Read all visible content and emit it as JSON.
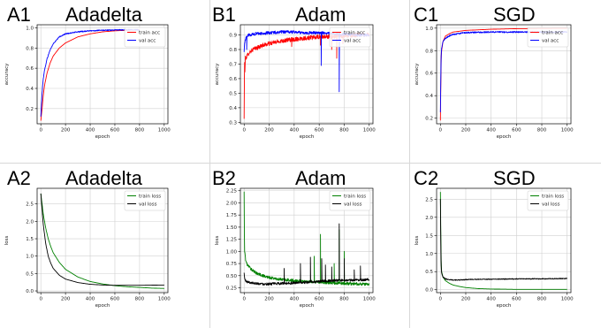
{
  "chart_data": [
    {
      "id": "A1",
      "type": "line",
      "panel_label": "A1",
      "title": "Adadelta",
      "xlabel": "epoch",
      "ylabel": "accuracy",
      "xlim": [
        -30,
        1030
      ],
      "ylim": [
        0.05,
        1.03
      ],
      "xticks": [
        "0",
        "200",
        "400",
        "600",
        "800",
        "1000"
      ],
      "yticks": [
        "0.2",
        "0.4",
        "0.6",
        "0.8",
        "1.0"
      ],
      "xtick_values": [
        0,
        200,
        400,
        600,
        800,
        1000
      ],
      "ytick_values": [
        0.2,
        0.4,
        0.6,
        0.8,
        1.0
      ],
      "grid": true,
      "legend_position": "top-right",
      "x": [
        0,
        10,
        20,
        30,
        50,
        75,
        100,
        150,
        200,
        300,
        400,
        500,
        600,
        700,
        800
      ],
      "series": [
        {
          "name": "train acc",
          "color": "#ff0000",
          "noise": 0.0,
          "values": [
            0.08,
            0.2,
            0.33,
            0.43,
            0.55,
            0.65,
            0.72,
            0.8,
            0.85,
            0.91,
            0.94,
            0.96,
            0.97,
            0.975,
            0.98
          ]
        },
        {
          "name": "val acc",
          "color": "#0000ff",
          "noise": 0.005,
          "values": [
            0.12,
            0.35,
            0.5,
            0.58,
            0.69,
            0.78,
            0.84,
            0.91,
            0.94,
            0.96,
            0.97,
            0.975,
            0.978,
            0.98,
            0.98
          ]
        }
      ]
    },
    {
      "id": "B1",
      "type": "line",
      "panel_label": "B1",
      "title": "Adam",
      "xlabel": "epoch",
      "ylabel": "accuracy",
      "xlim": [
        -30,
        1030
      ],
      "ylim": [
        0.29,
        0.97
      ],
      "xticks": [
        "0",
        "200",
        "400",
        "600",
        "800",
        "1000"
      ],
      "yticks": [
        "0.3",
        "0.4",
        "0.5",
        "0.6",
        "0.7",
        "0.8",
        "0.9"
      ],
      "xtick_values": [
        0,
        200,
        400,
        600,
        800,
        1000
      ],
      "ytick_values": [
        0.3,
        0.4,
        0.5,
        0.6,
        0.7,
        0.8,
        0.9
      ],
      "grid": true,
      "legend_position": "top-right",
      "x": [
        0,
        3,
        6,
        10,
        20,
        40,
        70,
        100,
        150,
        200,
        300,
        400,
        500,
        600,
        700,
        800,
        900,
        1000
      ],
      "series": [
        {
          "name": "train acc",
          "color": "#ff0000",
          "noise": 0.015,
          "values": [
            0.32,
            0.72,
            0.66,
            0.74,
            0.75,
            0.78,
            0.8,
            0.81,
            0.83,
            0.84,
            0.86,
            0.87,
            0.88,
            0.885,
            0.89,
            0.895,
            0.9,
            0.905
          ],
          "spikes": [
            [
              380,
              0.82
            ],
            [
              610,
              0.83
            ],
            [
              700,
              0.8
            ],
            [
              740,
              0.74
            ],
            [
              790,
              0.84
            ]
          ]
        },
        {
          "name": "val acc",
          "color": "#0000ff",
          "noise": 0.01,
          "values": [
            0.78,
            0.84,
            0.85,
            0.87,
            0.89,
            0.9,
            0.905,
            0.91,
            0.91,
            0.915,
            0.92,
            0.92,
            0.915,
            0.915,
            0.91,
            0.905,
            0.9,
            0.9
          ],
          "spikes": [
            [
              20,
              0.8
            ],
            [
              615,
              0.69
            ],
            [
              760,
              0.51
            ]
          ]
        }
      ]
    },
    {
      "id": "C1",
      "type": "line",
      "panel_label": "C1",
      "title": "SGD",
      "xlabel": "epoch",
      "ylabel": "accuracy",
      "xlim": [
        -30,
        1030
      ],
      "ylim": [
        0.15,
        1.03
      ],
      "xticks": [
        "0",
        "200",
        "400",
        "600",
        "800",
        "1000"
      ],
      "yticks": [
        "0.2",
        "0.4",
        "0.6",
        "0.8",
        "1.0"
      ],
      "xtick_values": [
        0,
        200,
        400,
        600,
        800,
        1000
      ],
      "ytick_values": [
        0.2,
        0.4,
        0.6,
        0.8,
        1.0
      ],
      "grid": true,
      "legend_position": "top-right",
      "x": [
        0,
        3,
        6,
        10,
        20,
        40,
        70,
        100,
        200,
        400,
        600,
        800,
        1000
      ],
      "series": [
        {
          "name": "train acc",
          "color": "#ff0000",
          "noise": 0.0,
          "values": [
            0.18,
            0.5,
            0.72,
            0.8,
            0.88,
            0.93,
            0.95,
            0.965,
            0.98,
            0.99,
            0.995,
            0.997,
            0.998
          ]
        },
        {
          "name": "val acc",
          "color": "#0000ff",
          "noise": 0.006,
          "values": [
            0.25,
            0.55,
            0.75,
            0.82,
            0.88,
            0.91,
            0.93,
            0.945,
            0.96,
            0.965,
            0.965,
            0.965,
            0.965
          ]
        }
      ]
    },
    {
      "id": "A2",
      "type": "line",
      "panel_label": "A2",
      "title": "Adadelta",
      "xlabel": "epoch",
      "ylabel": "loss",
      "xlim": [
        -30,
        1030
      ],
      "ylim": [
        -0.05,
        2.95
      ],
      "xticks": [
        "0",
        "200",
        "400",
        "600",
        "800",
        "1000"
      ],
      "yticks": [
        "0.0",
        "0.5",
        "1.0",
        "1.5",
        "2.0",
        "2.5"
      ],
      "xtick_values": [
        0,
        200,
        400,
        600,
        800,
        1000
      ],
      "ytick_values": [
        0.0,
        0.5,
        1.0,
        1.5,
        2.0,
        2.5
      ],
      "grid": true,
      "legend_position": "top-right",
      "x": [
        0,
        20,
        40,
        60,
        80,
        100,
        150,
        200,
        300,
        400,
        500,
        600,
        700,
        800,
        900,
        1000
      ],
      "series": [
        {
          "name": "train loss",
          "color": "#008000",
          "noise": 0.0,
          "values": [
            2.8,
            2.2,
            1.8,
            1.5,
            1.28,
            1.1,
            0.82,
            0.62,
            0.4,
            0.27,
            0.2,
            0.15,
            0.12,
            0.1,
            0.08,
            0.07
          ]
        },
        {
          "name": "val loss",
          "color": "#000000",
          "noise": 0.0,
          "values": [
            2.8,
            1.9,
            1.35,
            1.0,
            0.8,
            0.65,
            0.45,
            0.34,
            0.24,
            0.19,
            0.17,
            0.16,
            0.16,
            0.16,
            0.165,
            0.17
          ]
        }
      ]
    },
    {
      "id": "B2",
      "type": "line",
      "panel_label": "B2",
      "title": "Adam",
      "xlabel": "epoch",
      "ylabel": "loss",
      "xlim": [
        -30,
        1030
      ],
      "ylim": [
        0.15,
        2.3
      ],
      "xticks": [
        "0",
        "200",
        "400",
        "600",
        "800",
        "1000"
      ],
      "yticks": [
        "0.25",
        "0.50",
        "0.75",
        "1.00",
        "1.25",
        "1.50",
        "1.75",
        "2.00",
        "2.25"
      ],
      "xtick_values": [
        0,
        200,
        400,
        600,
        800,
        1000
      ],
      "ytick_values": [
        0.25,
        0.5,
        0.75,
        1.0,
        1.25,
        1.5,
        1.75,
        2.0,
        2.25
      ],
      "grid": true,
      "legend_position": "top-right",
      "x": [
        0,
        3,
        6,
        10,
        20,
        40,
        70,
        100,
        150,
        200,
        300,
        400,
        500,
        600,
        700,
        800,
        900,
        1000
      ],
      "series": [
        {
          "name": "train loss",
          "color": "#008000",
          "noise": 0.03,
          "values": [
            2.22,
            0.95,
            1.0,
            0.85,
            0.75,
            0.68,
            0.6,
            0.55,
            0.5,
            0.46,
            0.42,
            0.4,
            0.38,
            0.37,
            0.35,
            0.34,
            0.33,
            0.32
          ],
          "spikes": [
            [
              560,
              0.9
            ],
            [
              610,
              1.35
            ],
            [
              720,
              0.75
            ],
            [
              760,
              1.45
            ],
            [
              800,
              1.0
            ]
          ]
        },
        {
          "name": "val loss",
          "color": "#000000",
          "noise": 0.025,
          "values": [
            0.55,
            0.48,
            0.42,
            0.4,
            0.38,
            0.36,
            0.35,
            0.34,
            0.33,
            0.33,
            0.34,
            0.35,
            0.36,
            0.38,
            0.4,
            0.4,
            0.41,
            0.42
          ],
          "spikes": [
            [
              320,
              0.65
            ],
            [
              450,
              0.75
            ],
            [
              530,
              0.88
            ],
            [
              620,
              0.85
            ],
            [
              650,
              0.72
            ],
            [
              700,
              0.68
            ],
            [
              760,
              1.57
            ],
            [
              800,
              0.85
            ],
            [
              880,
              0.62
            ],
            [
              930,
              0.7
            ]
          ]
        }
      ]
    },
    {
      "id": "C2",
      "type": "line",
      "panel_label": "C2",
      "title": "SGD",
      "xlabel": "epoch",
      "ylabel": "loss",
      "xlim": [
        -30,
        1030
      ],
      "ylim": [
        -0.08,
        2.8
      ],
      "xticks": [
        "0",
        "200",
        "400",
        "600",
        "800",
        "1000"
      ],
      "yticks": [
        "0.0",
        "0.5",
        "1.0",
        "1.5",
        "2.0",
        "2.5"
      ],
      "xtick_values": [
        0,
        200,
        400,
        600,
        800,
        1000
      ],
      "ytick_values": [
        0.0,
        0.5,
        1.0,
        1.5,
        2.0,
        2.5
      ],
      "grid": true,
      "legend_position": "top-right",
      "x": [
        0,
        3,
        6,
        10,
        20,
        40,
        70,
        100,
        150,
        200,
        300,
        400,
        600,
        800,
        1000
      ],
      "series": [
        {
          "name": "train loss",
          "color": "#008000",
          "noise": 0.0,
          "values": [
            2.7,
            1.5,
            0.8,
            0.5,
            0.35,
            0.25,
            0.18,
            0.13,
            0.09,
            0.06,
            0.03,
            0.02,
            0.01,
            0.01,
            0.01
          ]
        },
        {
          "name": "val loss",
          "color": "#000000",
          "noise": 0.012,
          "values": [
            2.5,
            1.2,
            0.65,
            0.45,
            0.35,
            0.3,
            0.28,
            0.27,
            0.27,
            0.28,
            0.29,
            0.29,
            0.3,
            0.3,
            0.31
          ]
        }
      ]
    }
  ]
}
